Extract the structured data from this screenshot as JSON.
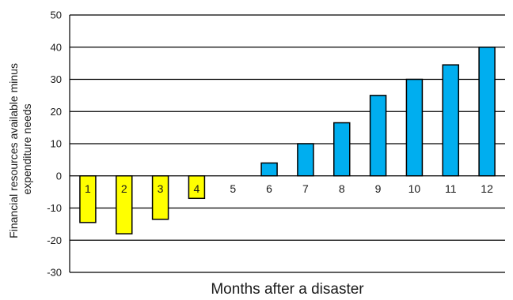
{
  "chart_data": {
    "type": "bar",
    "categories": [
      "1",
      "2",
      "3",
      "4",
      "5",
      "6",
      "7",
      "8",
      "9",
      "10",
      "11",
      "12"
    ],
    "values": [
      -14.5,
      -18,
      -13.5,
      -7,
      0,
      4,
      10,
      16.5,
      25,
      30,
      34.5,
      40
    ],
    "colors": [
      "#ffff00",
      "#ffff00",
      "#ffff00",
      "#ffff00",
      "#00aeef",
      "#00aeef",
      "#00aeef",
      "#00aeef",
      "#00aeef",
      "#00aeef",
      "#00aeef",
      "#00aeef"
    ],
    "xlabel": "Months after a disaster",
    "ylabel_lines": [
      "Financial resources available minus",
      "expenditure needs"
    ],
    "ylim": [
      -30,
      50
    ],
    "yticks": [
      -30,
      -20,
      -10,
      0,
      10,
      20,
      30,
      40,
      50
    ],
    "grid": true,
    "bar_outline_color": "#000000",
    "grid_color": "#000000"
  }
}
